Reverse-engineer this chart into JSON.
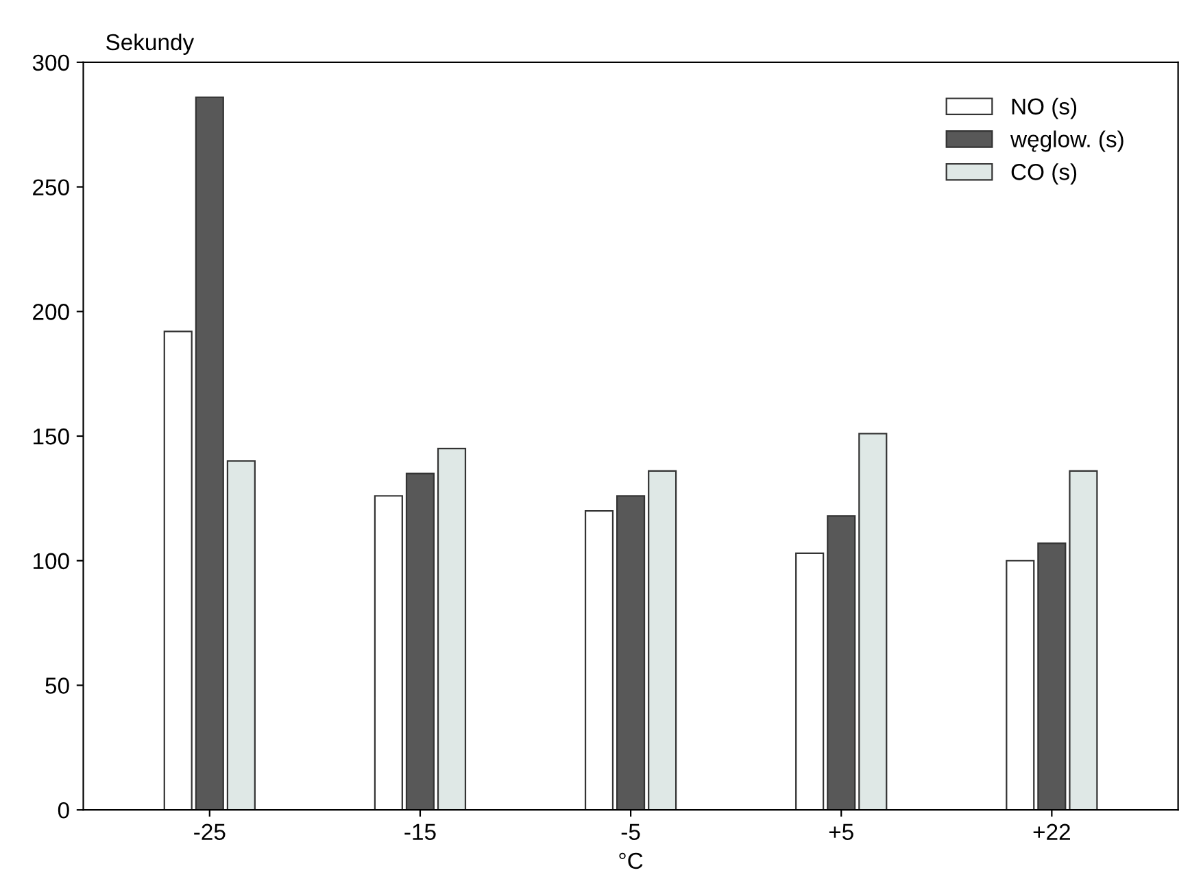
{
  "chart_data": {
    "type": "bar",
    "ylabel": "Sekundy",
    "xlabel": "°C",
    "categories": [
      "-25",
      "-15",
      "-5",
      "+5",
      "+22"
    ],
    "series": [
      {
        "name": "NO (s)",
        "color": "#ffffff",
        "values": [
          192,
          126,
          120,
          103,
          100
        ]
      },
      {
        "name": "węglow. (s)",
        "color": "#585858",
        "values": [
          286,
          135,
          126,
          118,
          107
        ]
      },
      {
        "name": "CO (s)",
        "color": "#dfe8e6",
        "values": [
          140,
          145,
          136,
          151,
          136
        ]
      }
    ],
    "ylim": [
      0,
      300
    ],
    "yticks": [
      0,
      50,
      100,
      150,
      200,
      250,
      300
    ],
    "grid": false,
    "legend": "top right"
  }
}
